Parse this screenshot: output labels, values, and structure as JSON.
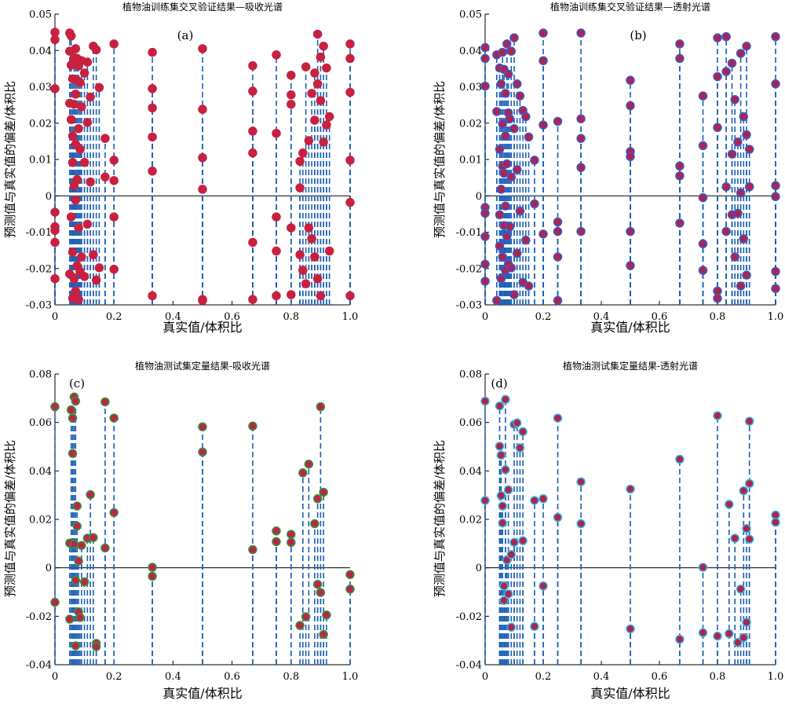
{
  "chart_data": [
    {
      "type": "scatter",
      "tag": "(a)",
      "title": "植物油训练集交叉验证结果—吸收光谱",
      "xlabel": "真实值/体积比",
      "ylabel": "预测值与真实值的偏差/体积比",
      "xlim": [
        0,
        1
      ],
      "ylim": [
        -0.03,
        0.05
      ],
      "xticks": [
        "0",
        "0.2",
        "0.4",
        "0.6",
        "0.8",
        "1.0"
      ],
      "yticks": [
        "-0.03",
        "-0.02",
        "-0.01",
        "0",
        "0.01",
        "0.02",
        "0.03",
        "0.04",
        "0.05"
      ],
      "grid": false,
      "stem_color": "#1a5fb4",
      "marker_fill": "#c8213f",
      "marker_edge": "#c8213f",
      "x": [
        0,
        0,
        0,
        0,
        0,
        0,
        0,
        0,
        0.05,
        0.05,
        0.05,
        0.05,
        0.055,
        0.055,
        0.055,
        0.055,
        0.06,
        0.06,
        0.06,
        0.06,
        0.06,
        0.065,
        0.065,
        0.065,
        0.065,
        0.07,
        0.07,
        0.07,
        0.07,
        0.07,
        0.075,
        0.075,
        0.075,
        0.075,
        0.08,
        0.08,
        0.08,
        0.08,
        0.085,
        0.085,
        0.085,
        0.09,
        0.09,
        0.09,
        0.1,
        0.1,
        0.1,
        0.11,
        0.11,
        0.11,
        0.12,
        0.12,
        0.13,
        0.13,
        0.14,
        0.14,
        0.15,
        0.15,
        0.17,
        0.17,
        0.2,
        0.2,
        0.2,
        0.2,
        0.2,
        0.33,
        0.33,
        0.33,
        0.33,
        0.33,
        0.33,
        0.5,
        0.5,
        0.5,
        0.5,
        0.5,
        0.5,
        0.67,
        0.67,
        0.67,
        0.67,
        0.67,
        0.67,
        0.75,
        0.75,
        0.75,
        0.75,
        0.75,
        0.8,
        0.8,
        0.8,
        0.8,
        0.8,
        0.83,
        0.83,
        0.83,
        0.84,
        0.84,
        0.85,
        0.85,
        0.86,
        0.86,
        0.87,
        0.87,
        0.88,
        0.88,
        0.88,
        0.89,
        0.89,
        0.89,
        0.9,
        0.9,
        0.9,
        0.91,
        0.91,
        0.92,
        0.92,
        0.93,
        0.93,
        1.0,
        1.0,
        1.0,
        1.0,
        1.0,
        1.0
      ],
      "y": [
        0.045,
        0.043,
        0.0295,
        -0.0045,
        -0.0085,
        -0.0095,
        -0.0128,
        -0.0228,
        0.0448,
        0.0398,
        0.0255,
        -0.0215,
        0.044,
        0.036,
        0.021,
        -0.0058,
        0.0322,
        0.0165,
        0.0092,
        -0.0155,
        -0.0282,
        0.038,
        0.0252,
        0.0028,
        -0.0228,
        0.0405,
        0.028,
        0.0142,
        -0.0012,
        -0.0262,
        0.0378,
        0.0318,
        0.0045,
        -0.0192,
        0.0358,
        0.0185,
        -0.0088,
        -0.0285,
        0.0312,
        0.0128,
        -0.0208,
        0.0372,
        0.0245,
        -0.0168,
        0.0338,
        0.0092,
        -0.0222,
        0.0368,
        0.0202,
        -0.0078,
        0.0272,
        0.0038,
        0.0412,
        -0.0162,
        0.0402,
        -0.0232,
        0.0298,
        -0.0198,
        0.0158,
        0.0052,
        0.0418,
        0.0098,
        0.0042,
        -0.0058,
        -0.0202,
        0.0395,
        0.0295,
        0.0242,
        0.0162,
        0.0068,
        -0.0275,
        0.0405,
        0.0238,
        0.0105,
        0.0018,
        -0.0285,
        -0.0288,
        0.0358,
        0.0288,
        0.0178,
        0.0118,
        -0.0128,
        -0.0285,
        0.0388,
        0.0172,
        -0.0058,
        -0.0152,
        -0.0275,
        0.0332,
        0.0278,
        0.0252,
        -0.0088,
        -0.0272,
        0.0095,
        0.0022,
        -0.0162,
        0.0118,
        -0.0205,
        0.0355,
        -0.0242,
        0.0152,
        -0.0088,
        0.0282,
        -0.0118,
        0.0338,
        0.0208,
        -0.0168,
        0.0445,
        0.0308,
        -0.0228,
        0.0382,
        0.0262,
        -0.0275,
        0.0412,
        0.0148,
        0.0352,
        0.0195,
        0.0218,
        -0.0152,
        0.0418,
        0.0378,
        0.0285,
        0.0098,
        -0.0018,
        -0.0275
      ]
    },
    {
      "type": "scatter",
      "tag": "(b)",
      "title": "植物油训练集交叉验证结果—透射光谱",
      "xlabel": "真实值/体积比",
      "ylabel": "预测值与真实值的偏差/体积比",
      "xlim": [
        0,
        1
      ],
      "ylim": [
        -0.03,
        0.05
      ],
      "xticks": [
        "0",
        "0.2",
        "0.4",
        "0.6",
        "0.8",
        "1.0"
      ],
      "yticks": [
        "-0.03",
        "-0.02",
        "-0.01",
        "0",
        "0.01",
        "0.02",
        "0.03",
        "0.04",
        "0.05"
      ],
      "grid": false,
      "stem_color": "#1a5fb4",
      "marker_fill": "#b0234a",
      "marker_edge": "#3a5bd0",
      "x": [
        0,
        0,
        0,
        0,
        0,
        0,
        0,
        0,
        0.04,
        0.04,
        0.04,
        0.05,
        0.05,
        0.05,
        0.05,
        0.055,
        0.055,
        0.055,
        0.06,
        0.06,
        0.06,
        0.06,
        0.065,
        0.065,
        0.065,
        0.07,
        0.07,
        0.07,
        0.07,
        0.075,
        0.075,
        0.075,
        0.08,
        0.08,
        0.08,
        0.085,
        0.085,
        0.09,
        0.09,
        0.09,
        0.1,
        0.1,
        0.1,
        0.11,
        0.11,
        0.11,
        0.12,
        0.12,
        0.13,
        0.13,
        0.14,
        0.14,
        0.15,
        0.15,
        0.17,
        0.17,
        0.2,
        0.2,
        0.2,
        0.2,
        0.25,
        0.25,
        0.25,
        0.25,
        0.25,
        0.33,
        0.33,
        0.33,
        0.33,
        0.33,
        0.5,
        0.5,
        0.5,
        0.5,
        0.5,
        0.5,
        0.67,
        0.67,
        0.67,
        0.67,
        0.67,
        0.75,
        0.75,
        0.75,
        0.75,
        0.75,
        0.8,
        0.8,
        0.8,
        0.8,
        0.8,
        0.83,
        0.83,
        0.83,
        0.83,
        0.85,
        0.85,
        0.85,
        0.86,
        0.86,
        0.87,
        0.87,
        0.88,
        0.88,
        0.88,
        0.89,
        0.89,
        0.9,
        0.9,
        0.9,
        0.91,
        0.91,
        1.0,
        1.0,
        1.0,
        1.0,
        1.0,
        1.0
      ],
      "y": [
        0.0408,
        0.0378,
        0.0302,
        -0.0032,
        -0.0048,
        -0.0112,
        -0.0188,
        -0.0235,
        0.0388,
        0.0232,
        -0.0288,
        0.0352,
        0.0128,
        -0.0052,
        -0.0138,
        0.0308,
        0.0018,
        -0.0228,
        0.0395,
        0.0198,
        0.0082,
        -0.0168,
        0.0348,
        0.0062,
        -0.0082,
        0.0282,
        0.0165,
        -0.0028,
        -0.0205,
        0.0418,
        0.0088,
        -0.0112,
        0.0335,
        0.0228,
        -0.0188,
        0.0212,
        -0.0085,
        0.0398,
        0.0052,
        -0.0198,
        0.0435,
        0.0185,
        -0.0272,
        0.0308,
        0.0072,
        -0.0158,
        0.0275,
        -0.0042,
        0.0235,
        -0.0238,
        0.0218,
        -0.0122,
        0.0162,
        -0.0248,
        0.0098,
        -0.0022,
        0.0448,
        0.0372,
        0.0195,
        -0.0105,
        0.0205,
        -0.0072,
        -0.0098,
        -0.0168,
        -0.0288,
        0.0448,
        0.0212,
        0.0158,
        0.0078,
        -0.0098,
        0.0318,
        0.0248,
        0.0122,
        0.0108,
        -0.0098,
        -0.0192,
        0.0418,
        0.0378,
        0.0082,
        0.0055,
        -0.0075,
        0.0275,
        0.0138,
        -0.0005,
        -0.0132,
        -0.0205,
        0.0435,
        0.0328,
        0.0188,
        -0.0262,
        -0.0282,
        0.0438,
        0.0342,
        0.0025,
        -0.0098,
        0.0365,
        0.0115,
        -0.0052,
        0.0265,
        -0.0168,
        0.0148,
        -0.0048,
        0.0392,
        0.0008,
        -0.0248,
        0.0218,
        -0.0118,
        0.0412,
        0.0168,
        -0.0218,
        0.0128,
        0.0025,
        0.0438,
        0.0308,
        0.0028,
        -0.0002,
        -0.0208,
        -0.0255
      ]
    },
    {
      "type": "scatter",
      "tag": "(c)",
      "title": "植物油测试集定量结果-吸收光谱",
      "xlabel": "真实值/体积比",
      "ylabel": "预测值与真实值的偏差/体积比",
      "xlim": [
        0,
        1
      ],
      "ylim": [
        -0.04,
        0.08
      ],
      "xticks": [
        "0",
        "0.2",
        "0.4",
        "0.6",
        "0.8",
        "1.0"
      ],
      "yticks": [
        "-0.04",
        "-0.02",
        "0",
        "0.02",
        "0.04",
        "0.06",
        "0.08"
      ],
      "grid": false,
      "stem_color": "#1a5fb4",
      "marker_fill": "#c0234a",
      "marker_edge": "#2e9a3a",
      "x": [
        0,
        0,
        0.05,
        0.05,
        0.055,
        0.06,
        0.06,
        0.065,
        0.065,
        0.07,
        0.07,
        0.07,
        0.075,
        0.075,
        0.08,
        0.08,
        0.085,
        0.09,
        0.1,
        0.11,
        0.12,
        0.13,
        0.14,
        0.14,
        0.17,
        0.17,
        0.2,
        0.2,
        0.33,
        0.33,
        0.5,
        0.5,
        0.67,
        0.67,
        0.75,
        0.75,
        0.8,
        0.8,
        0.83,
        0.84,
        0.85,
        0.86,
        0.88,
        0.89,
        0.89,
        0.9,
        0.9,
        0.91,
        0.91,
        0.92,
        1.0,
        1.0
      ],
      "y": [
        0.0665,
        -0.0142,
        0.0102,
        -0.0212,
        0.0652,
        0.0618,
        0.0472,
        0.0705,
        0.0098,
        0.0688,
        -0.0052,
        -0.0322,
        0.0255,
        0.0172,
        -0.0182,
        0.0028,
        -0.0205,
        0.0092,
        -0.0058,
        0.0122,
        0.0302,
        0.0125,
        -0.0312,
        -0.0325,
        0.0685,
        0.0082,
        0.0618,
        0.0228,
        0.0002,
        -0.0035,
        0.0582,
        0.0478,
        0.0585,
        0.0075,
        0.0152,
        0.0108,
        0.0138,
        0.0105,
        -0.0238,
        0.0392,
        -0.0202,
        0.0428,
        0.0182,
        -0.0068,
        0.0285,
        0.0665,
        -0.0102,
        -0.0275,
        0.0312,
        -0.0195,
        -0.0028,
        -0.0088
      ]
    },
    {
      "type": "scatter",
      "tag": "(d)",
      "title": "植物油测试集定量结果-透射光谱",
      "xlabel": "真实值/体积比",
      "ylabel": "预测值与真实值的偏差/体积比",
      "xlim": [
        0,
        1
      ],
      "ylim": [
        -0.04,
        0.08
      ],
      "xticks": [
        "0",
        "0.2",
        "0.4",
        "0.6",
        "0.8",
        "1.0"
      ],
      "yticks": [
        "-0.04",
        "-0.02",
        "0",
        "0.02",
        "0.04",
        "0.06",
        "0.08"
      ],
      "grid": false,
      "stem_color": "#1a5fb4",
      "marker_fill": "#b0234a",
      "marker_edge": "#35b8e6",
      "x": [
        0,
        0,
        0.05,
        0.05,
        0.055,
        0.055,
        0.06,
        0.06,
        0.065,
        0.065,
        0.07,
        0.07,
        0.075,
        0.08,
        0.08,
        0.09,
        0.09,
        0.1,
        0.1,
        0.11,
        0.12,
        0.13,
        0.13,
        0.17,
        0.17,
        0.2,
        0.2,
        0.25,
        0.25,
        0.33,
        0.33,
        0.5,
        0.5,
        0.67,
        0.67,
        0.75,
        0.75,
        0.8,
        0.8,
        0.84,
        0.84,
        0.86,
        0.87,
        0.88,
        0.89,
        0.89,
        0.9,
        0.9,
        0.91,
        0.91,
        0.91,
        1.0,
        1.0
      ],
      "y": [
        0.0688,
        0.0278,
        0.0668,
        0.0502,
        0.0465,
        0.0298,
        0.0185,
        0.0255,
        -0.0075,
        -0.0135,
        0.0695,
        0.0405,
        0.0032,
        0.0322,
        -0.0108,
        -0.0245,
        0.0055,
        0.0592,
        0.0105,
        0.0598,
        0.0495,
        0.0562,
        0.0112,
        0.0278,
        -0.0242,
        0.0285,
        -0.0075,
        0.0618,
        0.0208,
        0.0355,
        0.0182,
        0.0325,
        -0.0252,
        0.0448,
        -0.0295,
        0.0002,
        -0.0268,
        0.0628,
        -0.0282,
        0.0262,
        -0.0272,
        0.0122,
        -0.0308,
        -0.0088,
        -0.0288,
        0.0318,
        0.0162,
        -0.0225,
        0.0605,
        0.0118,
        0.0348,
        0.0218,
        0.0188
      ]
    }
  ]
}
